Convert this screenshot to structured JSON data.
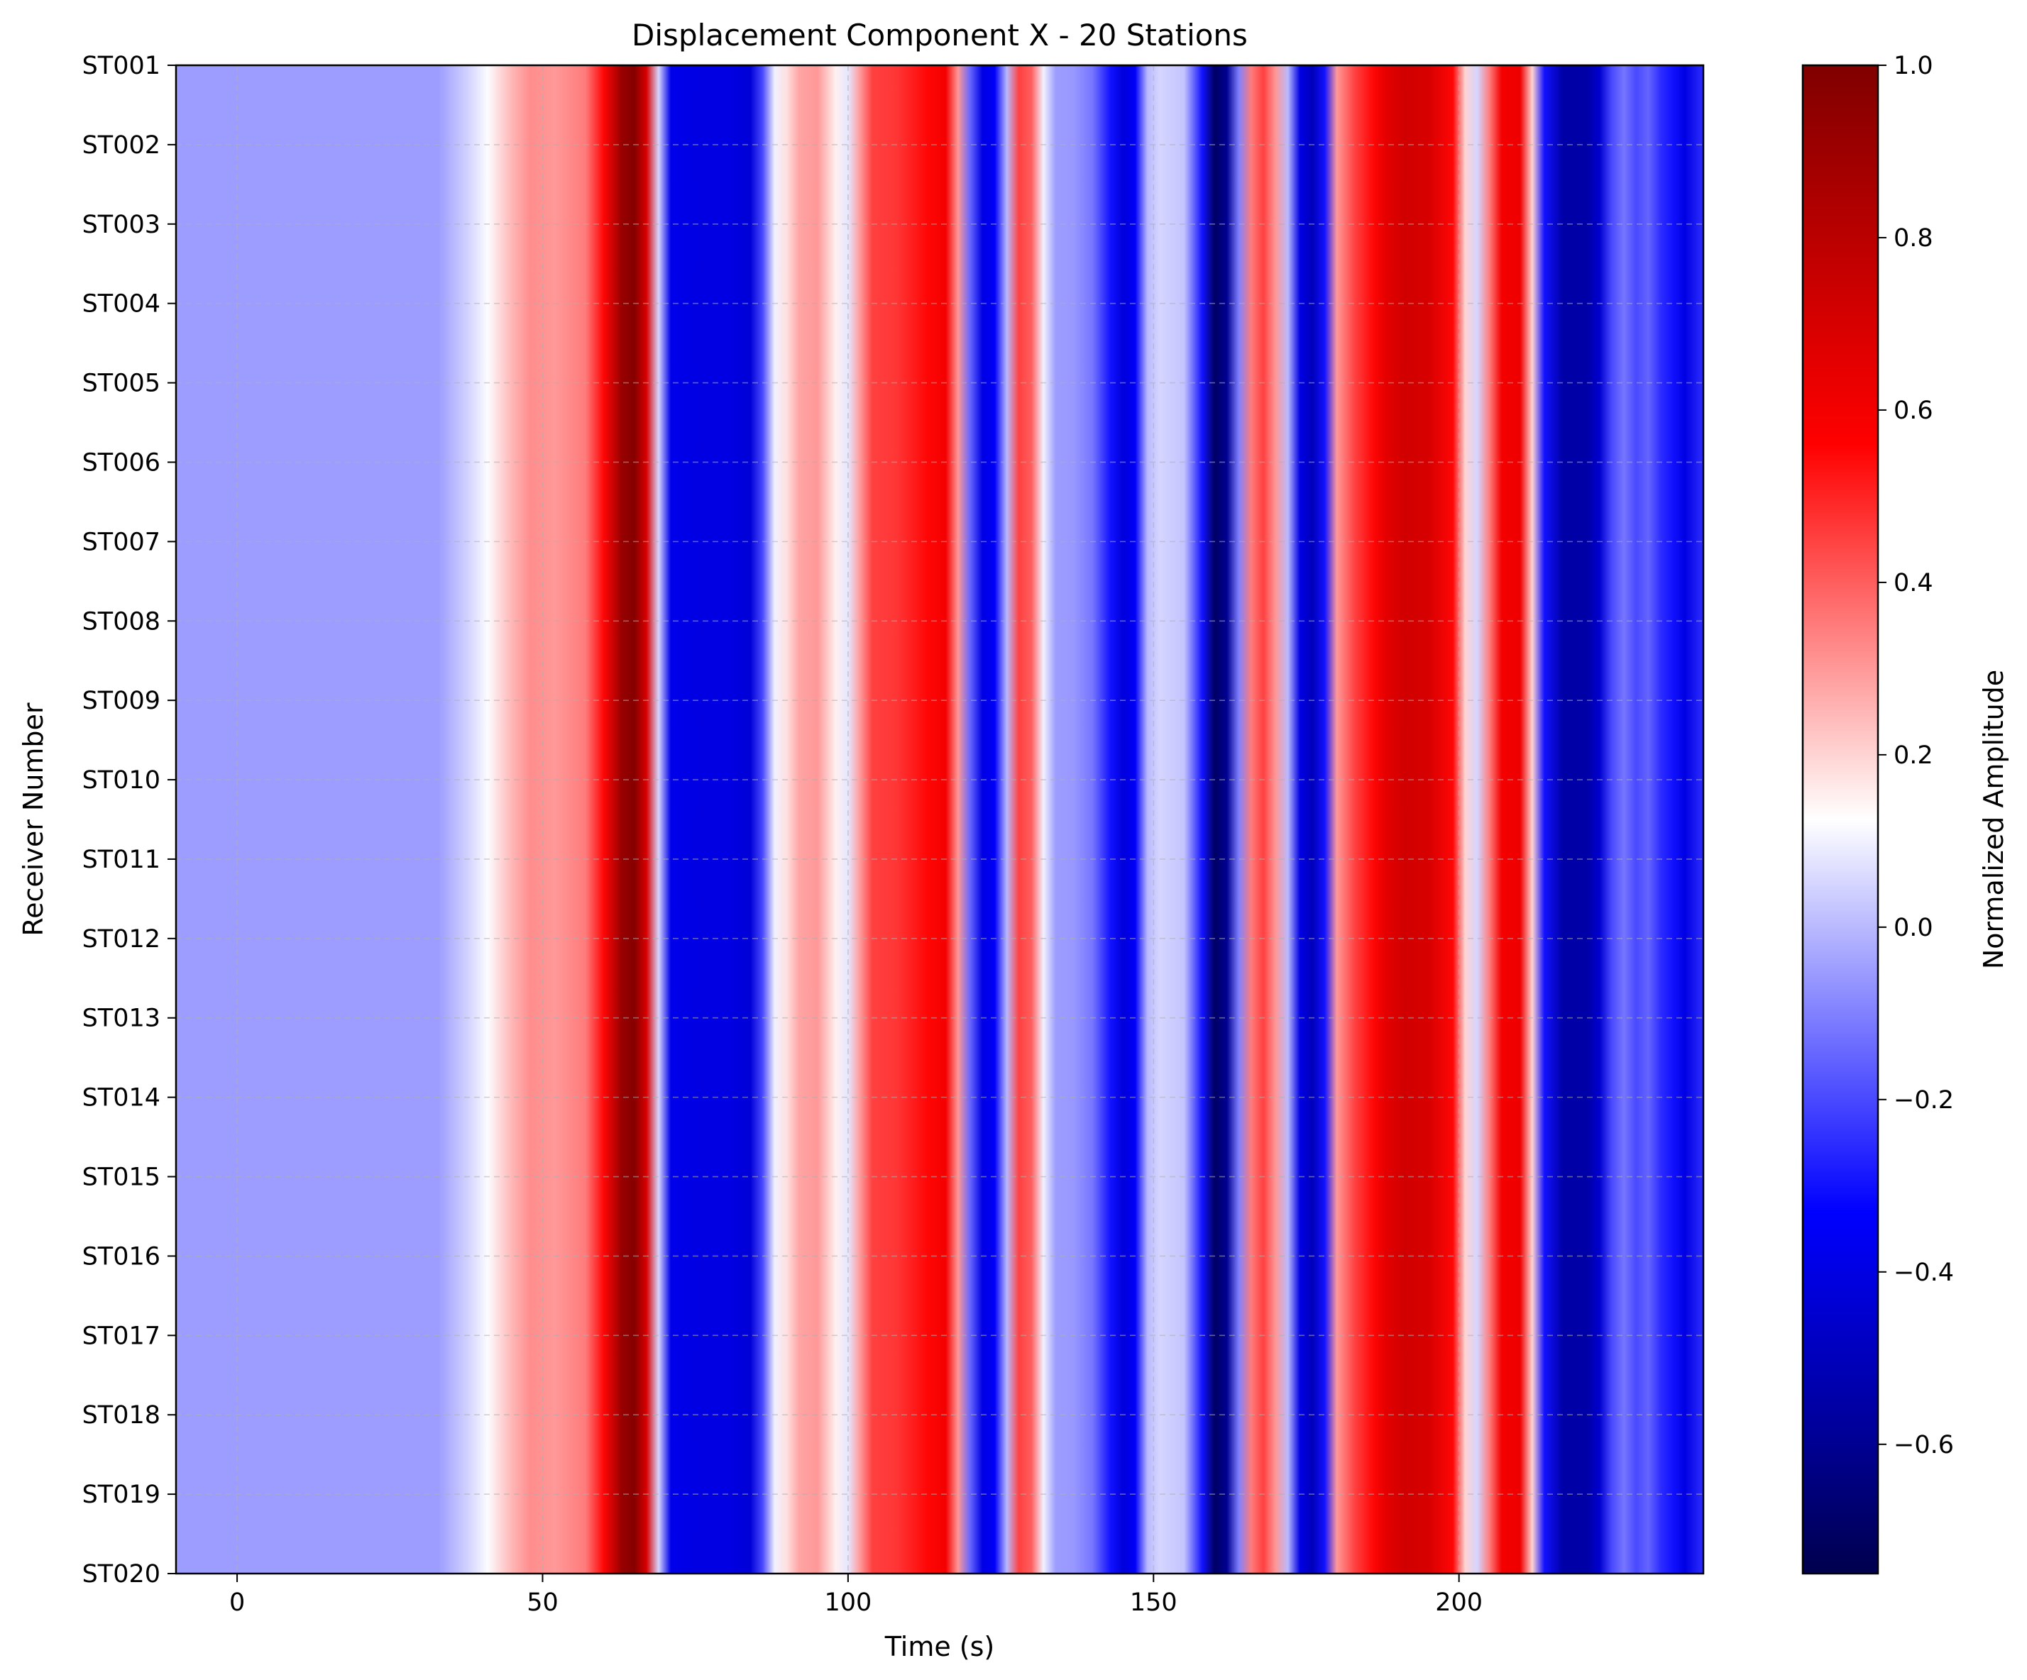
{
  "chart_data": {
    "type": "heatmap",
    "title": "Displacement Component X - 20 Stations",
    "xlabel": "Time (s)",
    "ylabel": "Receiver Number",
    "xlim": [
      -10,
      240
    ],
    "x_ticks": [
      0,
      50,
      100,
      150,
      200
    ],
    "stations": [
      "ST001",
      "ST002",
      "ST003",
      "ST004",
      "ST005",
      "ST006",
      "ST007",
      "ST008",
      "ST009",
      "ST010",
      "ST011",
      "ST012",
      "ST013",
      "ST014",
      "ST015",
      "ST016",
      "ST017",
      "ST018",
      "ST019",
      "ST020"
    ],
    "grid": true,
    "colormap": "seismic",
    "colorbar": {
      "label": "Normalized Amplitude",
      "range": [
        -0.75,
        1.0
      ],
      "ticks": [
        1.0,
        0.8,
        0.6,
        0.4,
        0.2,
        0.0,
        -0.2,
        -0.4,
        -0.6
      ],
      "tick_labels": [
        "1.0",
        "0.8",
        "0.6",
        "0.4",
        "0.2",
        "0.0",
        "−0.2",
        "−0.4",
        "−0.6"
      ],
      "stops": [
        {
          "value": -0.75,
          "color": "#00004d"
        },
        {
          "value": -0.58,
          "color": "#00009b"
        },
        {
          "value": -0.33,
          "color": "#0000ff"
        },
        {
          "value": 0.125,
          "color": "#ffffff"
        },
        {
          "value": 0.56,
          "color": "#ff0000"
        },
        {
          "value": 0.78,
          "color": "#c00000"
        },
        {
          "value": 1.0,
          "color": "#800000"
        }
      ]
    },
    "amplitude_profile": {
      "time": [
        -10,
        33,
        38,
        41,
        45,
        48,
        52,
        57,
        60,
        63,
        65,
        67,
        69,
        71,
        75,
        80,
        84,
        86,
        88,
        90,
        92,
        95,
        98,
        100,
        102,
        104,
        108,
        113,
        116,
        118,
        120,
        122,
        124,
        126,
        128,
        130,
        132,
        134,
        137,
        140,
        143,
        145,
        147,
        149,
        151,
        155,
        158,
        160,
        162,
        164,
        166,
        168,
        170,
        172,
        174,
        176,
        178,
        180,
        183,
        186,
        188,
        191,
        195,
        199,
        201,
        203,
        205,
        207,
        210,
        212,
        214,
        217,
        221,
        223,
        225,
        227,
        229,
        231,
        233,
        235,
        237,
        240
      ],
      "amplitude": [
        -0.05,
        -0.05,
        0.05,
        0.12,
        0.25,
        0.32,
        0.3,
        0.35,
        0.55,
        0.92,
        0.98,
        0.7,
        0.05,
        -0.38,
        -0.4,
        -0.4,
        -0.43,
        -0.2,
        0.1,
        0.18,
        0.28,
        0.3,
        0.15,
        0.08,
        0.3,
        0.45,
        0.47,
        0.55,
        0.6,
        0.3,
        -0.15,
        -0.4,
        -0.35,
        0.0,
        0.45,
        0.4,
        0.1,
        -0.05,
        -0.06,
        -0.12,
        -0.3,
        -0.42,
        -0.35,
        0.0,
        0.05,
        0.02,
        -0.3,
        -0.7,
        -0.6,
        -0.1,
        0.35,
        0.45,
        0.3,
        0.0,
        -0.4,
        -0.5,
        -0.3,
        0.3,
        0.45,
        0.55,
        0.65,
        0.72,
        0.7,
        0.55,
        0.2,
        0.05,
        0.35,
        0.6,
        0.62,
        0.2,
        -0.3,
        -0.55,
        -0.55,
        -0.45,
        -0.2,
        -0.12,
        -0.2,
        -0.15,
        -0.25,
        -0.3,
        -0.4,
        -0.25
      ]
    }
  }
}
